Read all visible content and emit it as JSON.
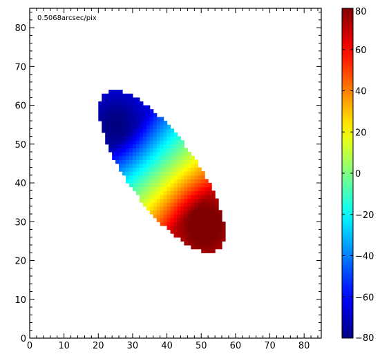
{
  "chart_data": {
    "type": "heatmap",
    "title": "",
    "xlabel": "",
    "ylabel": "",
    "annotation": "0.5068arcsec/pix",
    "xlim": [
      0,
      85
    ],
    "ylim": [
      0,
      85
    ],
    "x_ticks": [
      0,
      10,
      20,
      30,
      40,
      50,
      60,
      70,
      80
    ],
    "y_ticks": [
      0,
      10,
      20,
      30,
      40,
      50,
      60,
      70,
      80
    ],
    "colorbar": {
      "colormap": "jet",
      "range": [
        -80,
        80
      ],
      "ticks": [
        -80,
        -60,
        -40,
        -20,
        0,
        20,
        40,
        60,
        80
      ]
    },
    "velocity_field": {
      "center": [
        38.5,
        43
      ],
      "major_axis_angle_deg": 130,
      "semi_major": 26,
      "semi_minor": 9.5,
      "extremes": [
        {
          "x": 25,
          "y": 55,
          "value": -70
        },
        {
          "x": 51,
          "y": 29,
          "value": 75
        }
      ],
      "max_value": 80
    },
    "grid": false
  },
  "colors": {
    "background": "#ffffff",
    "axes": "#000000"
  }
}
